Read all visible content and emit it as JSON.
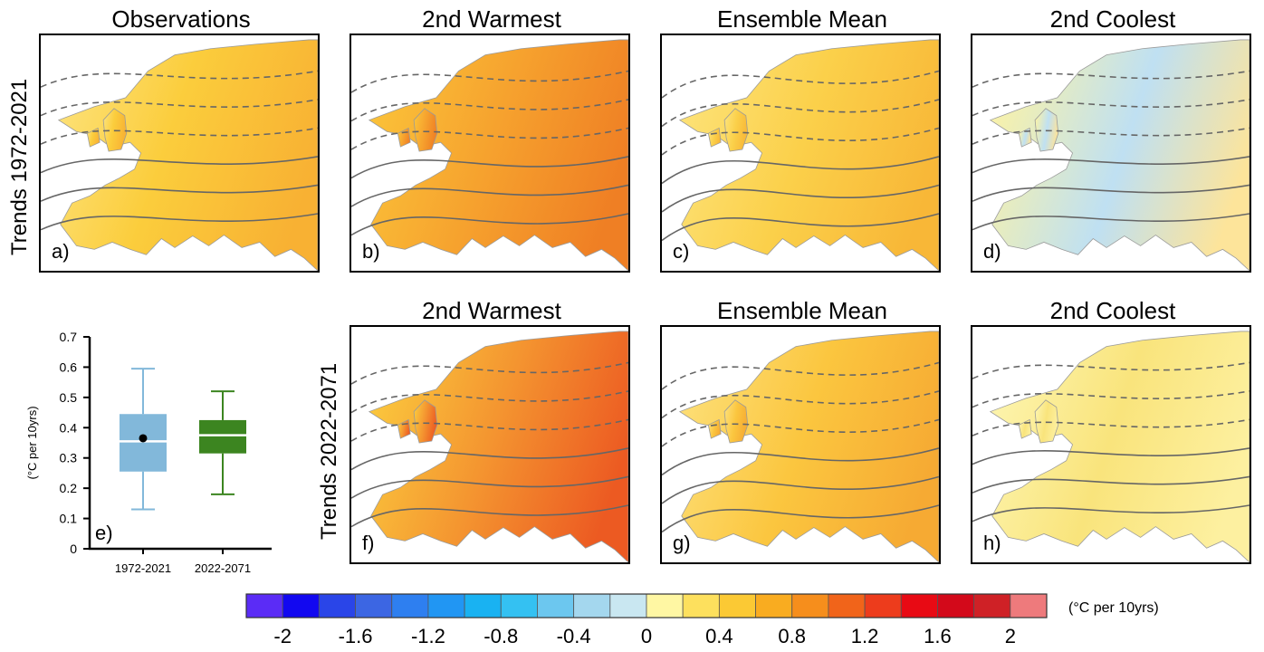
{
  "row_labels": [
    "Trends 1972-2021",
    "Trends 2022-2071"
  ],
  "panels": [
    {
      "title": "Observations",
      "label": "a)",
      "grad": [
        [
          "#fde27a",
          0
        ],
        [
          "#fbcd3c",
          0.45
        ],
        [
          "#f8b133",
          1
        ]
      ]
    },
    {
      "title": "2nd Warmest",
      "label": "b)",
      "grad": [
        [
          "#fbc43a",
          0
        ],
        [
          "#f6a22e",
          0.5
        ],
        [
          "#ef7f24",
          1
        ]
      ]
    },
    {
      "title": "Ensemble Mean",
      "label": "c)",
      "grad": [
        [
          "#fde37a",
          0
        ],
        [
          "#fbd04a",
          0.5
        ],
        [
          "#f8b737",
          1
        ]
      ]
    },
    {
      "title": "2nd Coolest",
      "label": "d)",
      "grad": [
        [
          "#fdf3a4",
          0
        ],
        [
          "#bfe0f2",
          0.55
        ],
        [
          "#fde49a",
          1
        ]
      ]
    },
    {
      "title": "2nd Warmest",
      "label": "f)",
      "grad": [
        [
          "#fbcb3e",
          0
        ],
        [
          "#f49530",
          0.5
        ],
        [
          "#ec5a22",
          1
        ]
      ]
    },
    {
      "title": "Ensemble Mean",
      "label": "g)",
      "grad": [
        [
          "#fde07a",
          0
        ],
        [
          "#fbc63f",
          0.5
        ],
        [
          "#f6aa33",
          1
        ]
      ]
    },
    {
      "title": "2nd Coolest",
      "label": "h)",
      "grad": [
        [
          "#fdf5b0",
          0
        ],
        [
          "#f9e47c",
          0.5
        ],
        [
          "#fdf0a0",
          1
        ]
      ]
    }
  ],
  "boxplot": {
    "label": "e)",
    "ylabel": "(°C per 10yrs)",
    "ylim": [
      0,
      0.7
    ],
    "yticks": [
      "0",
      "0.1",
      "0.2",
      "0.3",
      "0.4",
      "0.5",
      "0.6",
      "0.7"
    ],
    "boxes": [
      {
        "category": "1972-2021",
        "whisker_low": 0.13,
        "q1": 0.255,
        "median": 0.355,
        "q3": 0.445,
        "whisker_high": 0.595,
        "mean": 0.365,
        "color": "#82b8da"
      },
      {
        "category": "2022-2071",
        "whisker_low": 0.18,
        "q1": 0.315,
        "median": 0.375,
        "q3": 0.425,
        "whisker_high": 0.52,
        "mean": null,
        "color": "#3c8520"
      }
    ]
  },
  "colorbar": {
    "unit": "(°C per 10yrs)",
    "tick_labels": [
      "-2",
      "-1.6",
      "-1.2",
      "-0.8",
      "-0.4",
      "0",
      "0.4",
      "0.8",
      "1.2",
      "1.6",
      "2"
    ],
    "colors": [
      "#5b2cf6",
      "#1208f0",
      "#2a45e8",
      "#3c66e3",
      "#2e7ff0",
      "#2196f3",
      "#19b2f2",
      "#34c1f2",
      "#6cc7ef",
      "#a4d7ee",
      "#c9e7f1",
      "#fff7a3",
      "#fde05d",
      "#fbc934",
      "#f9ac20",
      "#f68e1c",
      "#f1641a",
      "#ed3c1c",
      "#e80a14",
      "#d3091a",
      "#cf2126",
      "#ee7a7c"
    ]
  }
}
